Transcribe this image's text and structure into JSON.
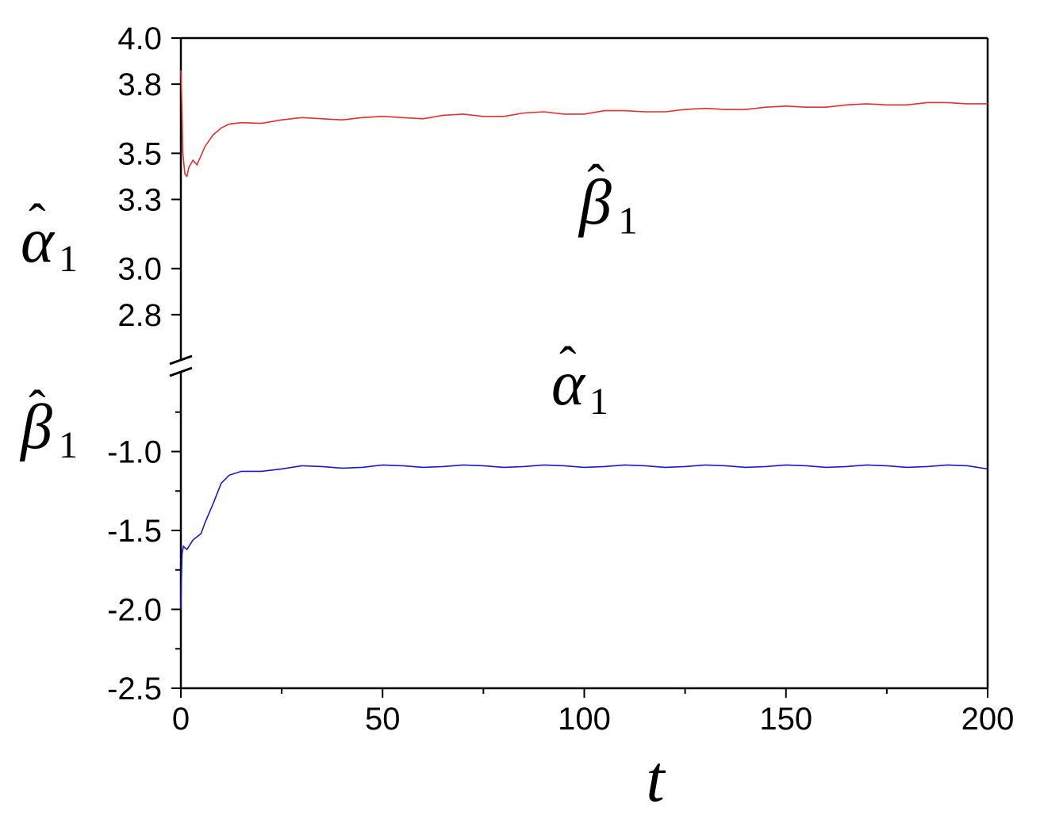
{
  "chart_data": {
    "type": "line",
    "axis_break": true,
    "grid": false,
    "x": {
      "label": "t",
      "range": [
        0,
        200
      ],
      "ticks": [
        0,
        50,
        100,
        150,
        200
      ],
      "tick_labels": [
        "0",
        "50",
        "100",
        "150",
        "200"
      ]
    },
    "y_upper_panel": {
      "range": [
        2.6,
        4.0
      ],
      "ticks": [
        2.8,
        3.0,
        3.3,
        3.5,
        3.8,
        4.0
      ],
      "tick_labels": [
        "2.8",
        "3.0",
        "3.3",
        "3.5",
        "3.8",
        "4.0"
      ],
      "axis_label": {
        "main": "α",
        "sub": "1"
      }
    },
    "y_lower_panel": {
      "range": [
        -2.5,
        -0.5
      ],
      "ticks": [
        -2.5,
        -2.0,
        -1.5,
        -1.0
      ],
      "tick_labels": [
        "-2.5",
        "-2.0",
        "-1.5",
        "-1.0"
      ],
      "axis_label": {
        "main": "β",
        "sub": "1"
      }
    },
    "series": [
      {
        "panel": "upper",
        "color": "#e03030",
        "annotation": {
          "main": "β",
          "sub": "1"
        },
        "x": [
          0,
          0.2,
          0.5,
          1,
          1.5,
          2,
          3,
          4,
          5,
          6,
          8,
          10,
          12,
          15,
          20,
          25,
          30,
          35,
          40,
          45,
          50,
          55,
          60,
          65,
          70,
          75,
          80,
          85,
          90,
          95,
          100,
          105,
          110,
          115,
          120,
          125,
          130,
          135,
          140,
          145,
          150,
          155,
          160,
          165,
          170,
          175,
          180,
          185,
          190,
          195,
          200
        ],
        "y": [
          3.86,
          3.75,
          3.5,
          3.41,
          3.4,
          3.44,
          3.47,
          3.45,
          3.49,
          3.53,
          3.58,
          3.61,
          3.627,
          3.633,
          3.63,
          3.645,
          3.655,
          3.65,
          3.645,
          3.655,
          3.66,
          3.655,
          3.65,
          3.665,
          3.67,
          3.66,
          3.66,
          3.675,
          3.68,
          3.67,
          3.67,
          3.685,
          3.685,
          3.68,
          3.68,
          3.69,
          3.695,
          3.69,
          3.69,
          3.7,
          3.705,
          3.7,
          3.7,
          3.71,
          3.715,
          3.71,
          3.71,
          3.72,
          3.72,
          3.715,
          3.715
        ]
      },
      {
        "panel": "lower",
        "color": "#1a1acc",
        "annotation": {
          "main": "α",
          "sub": "1"
        },
        "x": [
          0,
          0.1,
          0.3,
          0.6,
          1,
          1.5,
          2,
          3,
          4,
          5,
          6,
          8,
          10,
          12,
          15,
          20,
          25,
          30,
          35,
          40,
          45,
          50,
          55,
          60,
          65,
          70,
          75,
          80,
          85,
          90,
          95,
          100,
          105,
          110,
          115,
          120,
          125,
          130,
          135,
          140,
          145,
          150,
          155,
          160,
          165,
          170,
          175,
          180,
          185,
          190,
          195,
          200
        ],
        "y": [
          -2.0,
          -1.85,
          -1.65,
          -1.6,
          -1.61,
          -1.62,
          -1.6,
          -1.56,
          -1.54,
          -1.52,
          -1.45,
          -1.33,
          -1.2,
          -1.15,
          -1.125,
          -1.125,
          -1.11,
          -1.09,
          -1.095,
          -1.105,
          -1.1,
          -1.085,
          -1.09,
          -1.1,
          -1.095,
          -1.085,
          -1.09,
          -1.1,
          -1.095,
          -1.085,
          -1.09,
          -1.1,
          -1.095,
          -1.085,
          -1.09,
          -1.1,
          -1.095,
          -1.085,
          -1.09,
          -1.1,
          -1.095,
          -1.085,
          -1.09,
          -1.1,
          -1.095,
          -1.085,
          -1.09,
          -1.1,
          -1.095,
          -1.085,
          -1.09,
          -1.11
        ]
      }
    ]
  }
}
